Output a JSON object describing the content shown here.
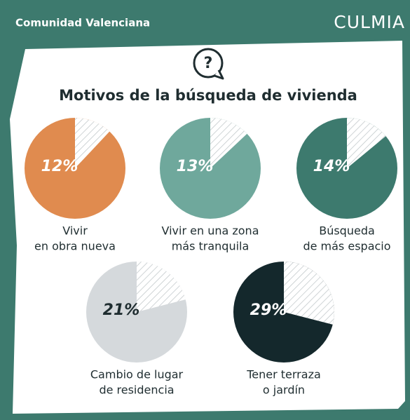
{
  "region": "Comunidad Valenciana",
  "brand": "CULMIA",
  "title": "Motivos de la búsqueda de vivienda",
  "chart_data": [
    {
      "type": "pie",
      "title": [
        "Vivir",
        "en obra nueva"
      ],
      "values": [
        12
      ],
      "value_labels": [
        "12%"
      ],
      "color": "#e08b4f",
      "label_color": "#ffffff"
    },
    {
      "type": "pie",
      "title": [
        "Vivir en una zona",
        "más tranquila"
      ],
      "values": [
        13
      ],
      "value_labels": [
        "13%"
      ],
      "color": "#6fa89c",
      "label_color": "#ffffff"
    },
    {
      "type": "pie",
      "title": [
        "Búsqueda",
        "de más espacio"
      ],
      "values": [
        14
      ],
      "value_labels": [
        "14%"
      ],
      "color": "#3d7a6e",
      "label_color": "#ffffff"
    },
    {
      "type": "pie",
      "title": [
        "Cambio de lugar",
        "de residencia"
      ],
      "values": [
        21
      ],
      "value_labels": [
        "21%"
      ],
      "color": "#d5d9dc",
      "label_color": "#1f2d30"
    },
    {
      "type": "pie",
      "title": [
        "Tener terraza",
        "o jardín"
      ],
      "values": [
        29
      ],
      "value_labels": [
        "29%"
      ],
      "color": "#14282c",
      "label_color": "#ffffff"
    }
  ]
}
